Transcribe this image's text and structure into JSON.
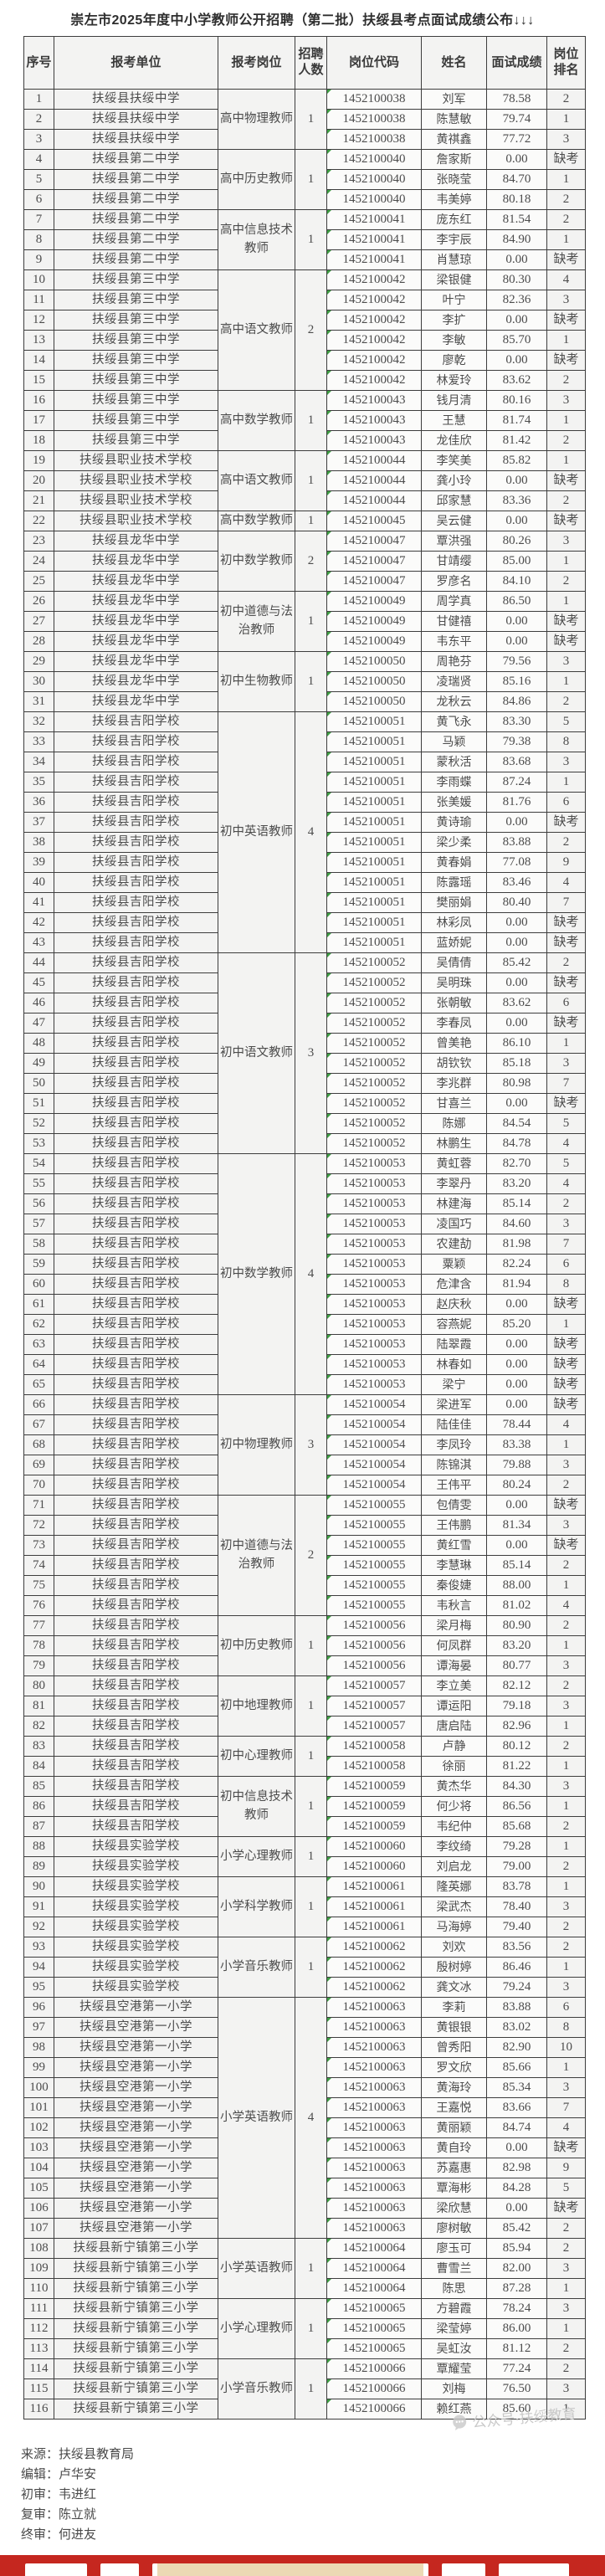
{
  "title": "崇左市2025年度中小学教师公开招聘（第二批）扶绥县考点面试成绩公布↓↓↓",
  "watermark": "公众号·扶绥教育",
  "table": {
    "headers": [
      "序号",
      "报考单位",
      "报考岗位",
      "招聘人数",
      "岗位代码",
      "姓名",
      "面试成绩",
      "岗位排名"
    ],
    "groups": [
      {
        "school": "扶绥县扶绥中学",
        "position": "高中物理教师",
        "count": "1",
        "code": "1452100038",
        "rows": [
          {
            "no": "1",
            "name": "刘军",
            "score": "78.58",
            "rank": "2"
          },
          {
            "no": "2",
            "name": "陈慧敏",
            "score": "79.74",
            "rank": "1"
          },
          {
            "no": "3",
            "name": "黄祺鑫",
            "score": "77.72",
            "rank": "3"
          }
        ]
      },
      {
        "school": "扶绥县第二中学",
        "position": "高中历史教师",
        "count": "1",
        "code": "1452100040",
        "rows": [
          {
            "no": "4",
            "name": "詹家斯",
            "score": "0.00",
            "rank": "缺考"
          },
          {
            "no": "5",
            "name": "张晓莹",
            "score": "84.70",
            "rank": "1"
          },
          {
            "no": "6",
            "name": "韦美婷",
            "score": "80.18",
            "rank": "2"
          }
        ]
      },
      {
        "school": "扶绥县第二中学",
        "position": "高中信息技术教师",
        "count": "1",
        "code": "1452100041",
        "rows": [
          {
            "no": "7",
            "name": "庞东红",
            "score": "81.54",
            "rank": "2"
          },
          {
            "no": "8",
            "name": "李宇辰",
            "score": "84.90",
            "rank": "1"
          },
          {
            "no": "9",
            "name": "肖慧琼",
            "score": "0.00",
            "rank": "缺考"
          }
        ]
      },
      {
        "school": "扶绥县第三中学",
        "position": "高中语文教师",
        "count": "2",
        "code": "1452100042",
        "rows": [
          {
            "no": "10",
            "name": "梁银健",
            "score": "80.30",
            "rank": "4"
          },
          {
            "no": "11",
            "name": "叶宁",
            "score": "82.36",
            "rank": "3"
          },
          {
            "no": "12",
            "name": "李扩",
            "score": "0.00",
            "rank": "缺考"
          },
          {
            "no": "13",
            "name": "李敏",
            "score": "85.70",
            "rank": "1"
          },
          {
            "no": "14",
            "name": "廖乾",
            "score": "0.00",
            "rank": "缺考"
          },
          {
            "no": "15",
            "name": "林爱玲",
            "score": "83.62",
            "rank": "2"
          }
        ]
      },
      {
        "school": "扶绥县第三中学",
        "position": "高中数学教师",
        "count": "1",
        "code": "1452100043",
        "rows": [
          {
            "no": "16",
            "name": "钱月清",
            "score": "80.16",
            "rank": "3"
          },
          {
            "no": "17",
            "name": "王慧",
            "score": "81.74",
            "rank": "1"
          },
          {
            "no": "18",
            "name": "龙佳欣",
            "score": "81.42",
            "rank": "2"
          }
        ]
      },
      {
        "school": "扶绥县职业技术学校",
        "position": "高中语文教师",
        "count": "1",
        "code": "1452100044",
        "rows": [
          {
            "no": "19",
            "name": "李笑美",
            "score": "85.82",
            "rank": "1"
          },
          {
            "no": "20",
            "name": "龚小玲",
            "score": "0.00",
            "rank": "缺考"
          },
          {
            "no": "21",
            "name": "邱家慧",
            "score": "83.36",
            "rank": "2"
          }
        ]
      },
      {
        "school": "扶绥县职业技术学校",
        "position": "高中数学教师",
        "count": "1",
        "code": "1452100045",
        "rows": [
          {
            "no": "22",
            "name": "吴云健",
            "score": "0.00",
            "rank": "缺考"
          }
        ]
      },
      {
        "school": "扶绥县龙华中学",
        "position": "初中数学教师",
        "count": "2",
        "code": "1452100047",
        "rows": [
          {
            "no": "23",
            "name": "覃洪强",
            "score": "80.26",
            "rank": "3"
          },
          {
            "no": "24",
            "name": "甘靖缨",
            "score": "85.00",
            "rank": "1"
          },
          {
            "no": "25",
            "name": "罗彦名",
            "score": "84.10",
            "rank": "2"
          }
        ]
      },
      {
        "school": "扶绥县龙华中学",
        "position": "初中道德与法治教师",
        "count": "1",
        "code": "1452100049",
        "rows": [
          {
            "no": "26",
            "name": "周学真",
            "score": "86.50",
            "rank": "1"
          },
          {
            "no": "27",
            "name": "甘健禧",
            "score": "0.00",
            "rank": "缺考"
          },
          {
            "no": "28",
            "name": "韦东平",
            "score": "0.00",
            "rank": "缺考"
          }
        ]
      },
      {
        "school": "扶绥县龙华中学",
        "position": "初中生物教师",
        "count": "1",
        "code": "1452100050",
        "rows": [
          {
            "no": "29",
            "name": "周艳芬",
            "score": "79.56",
            "rank": "3"
          },
          {
            "no": "30",
            "name": "凌瑞贤",
            "score": "85.16",
            "rank": "1"
          },
          {
            "no": "31",
            "name": "龙秋云",
            "score": "84.86",
            "rank": "2"
          }
        ]
      },
      {
        "school": "扶绥县吉阳学校",
        "position": "初中英语教师",
        "count": "4",
        "code": "1452100051",
        "rows": [
          {
            "no": "32",
            "name": "黄飞永",
            "score": "83.30",
            "rank": "5"
          },
          {
            "no": "33",
            "name": "马颖",
            "score": "79.38",
            "rank": "8"
          },
          {
            "no": "34",
            "name": "蒙秋活",
            "score": "83.68",
            "rank": "3"
          },
          {
            "no": "35",
            "name": "李雨蝶",
            "score": "87.24",
            "rank": "1"
          },
          {
            "no": "36",
            "name": "张美媛",
            "score": "81.76",
            "rank": "6"
          },
          {
            "no": "37",
            "name": "黄诗瑜",
            "score": "0.00",
            "rank": "缺考"
          },
          {
            "no": "38",
            "name": "梁少柔",
            "score": "83.88",
            "rank": "2"
          },
          {
            "no": "39",
            "name": "黄春娟",
            "score": "77.08",
            "rank": "9"
          },
          {
            "no": "40",
            "name": "陈露瑶",
            "score": "83.46",
            "rank": "4"
          },
          {
            "no": "41",
            "name": "樊丽娟",
            "score": "80.40",
            "rank": "7"
          },
          {
            "no": "42",
            "name": "林彩凤",
            "score": "0.00",
            "rank": "缺考"
          },
          {
            "no": "43",
            "name": "蓝娇妮",
            "score": "0.00",
            "rank": "缺考"
          }
        ]
      },
      {
        "school": "扶绥县吉阳学校",
        "position": "初中语文教师",
        "count": "3",
        "code": "1452100052",
        "rows": [
          {
            "no": "44",
            "name": "吴倩倩",
            "score": "85.42",
            "rank": "2"
          },
          {
            "no": "45",
            "name": "吴明珠",
            "score": "0.00",
            "rank": "缺考"
          },
          {
            "no": "46",
            "name": "张朝敏",
            "score": "83.62",
            "rank": "6"
          },
          {
            "no": "47",
            "name": "李春凤",
            "score": "0.00",
            "rank": "缺考"
          },
          {
            "no": "48",
            "name": "曾美艳",
            "score": "86.10",
            "rank": "1"
          },
          {
            "no": "49",
            "name": "胡钦钦",
            "score": "85.18",
            "rank": "3"
          },
          {
            "no": "50",
            "name": "李兆群",
            "score": "80.98",
            "rank": "7"
          },
          {
            "no": "51",
            "name": "甘喜兰",
            "score": "0.00",
            "rank": "缺考"
          },
          {
            "no": "52",
            "name": "陈娜",
            "score": "84.54",
            "rank": "5"
          },
          {
            "no": "53",
            "name": "林鹏生",
            "score": "84.78",
            "rank": "4"
          }
        ]
      },
      {
        "school": "扶绥县吉阳学校",
        "position": "初中数学教师",
        "count": "4",
        "code": "1452100053",
        "rows": [
          {
            "no": "54",
            "name": "黄虹蓉",
            "score": "82.70",
            "rank": "5"
          },
          {
            "no": "55",
            "name": "李翠丹",
            "score": "83.20",
            "rank": "4"
          },
          {
            "no": "56",
            "name": "林建海",
            "score": "85.14",
            "rank": "2"
          },
          {
            "no": "57",
            "name": "凌国巧",
            "score": "84.60",
            "rank": "3"
          },
          {
            "no": "58",
            "name": "农建劼",
            "score": "81.98",
            "rank": "7"
          },
          {
            "no": "59",
            "name": "粟颖",
            "score": "82.24",
            "rank": "6"
          },
          {
            "no": "60",
            "name": "危津含",
            "score": "81.94",
            "rank": "8"
          },
          {
            "no": "61",
            "name": "赵庆秋",
            "score": "0.00",
            "rank": "缺考"
          },
          {
            "no": "62",
            "name": "容燕妮",
            "score": "85.20",
            "rank": "1"
          },
          {
            "no": "63",
            "name": "陆翠霞",
            "score": "0.00",
            "rank": "缺考"
          },
          {
            "no": "64",
            "name": "林春如",
            "score": "0.00",
            "rank": "缺考"
          },
          {
            "no": "65",
            "name": "梁宁",
            "score": "0.00",
            "rank": "缺考"
          }
        ]
      },
      {
        "school": "扶绥县吉阳学校",
        "position": "初中物理教师",
        "count": "3",
        "code": "1452100054",
        "rows": [
          {
            "no": "66",
            "name": "梁进军",
            "score": "0.00",
            "rank": "缺考"
          },
          {
            "no": "67",
            "name": "陆佳佳",
            "score": "78.44",
            "rank": "4"
          },
          {
            "no": "68",
            "name": "李凤玲",
            "score": "83.38",
            "rank": "1"
          },
          {
            "no": "69",
            "name": "陈锦淇",
            "score": "79.88",
            "rank": "3"
          },
          {
            "no": "70",
            "name": "王伟平",
            "score": "80.24",
            "rank": "2"
          }
        ]
      },
      {
        "school": "扶绥县吉阳学校",
        "position": "初中道德与法治教师",
        "count": "2",
        "code": "1452100055",
        "rows": [
          {
            "no": "71",
            "name": "包倩雯",
            "score": "0.00",
            "rank": "缺考"
          },
          {
            "no": "72",
            "name": "王伟鹏",
            "score": "81.34",
            "rank": "3"
          },
          {
            "no": "73",
            "name": "黄红雪",
            "score": "0.00",
            "rank": "缺考"
          },
          {
            "no": "74",
            "name": "李慧琳",
            "score": "85.14",
            "rank": "2"
          },
          {
            "no": "75",
            "name": "秦俊婕",
            "score": "88.00",
            "rank": "1"
          },
          {
            "no": "76",
            "name": "韦秋言",
            "score": "81.02",
            "rank": "4"
          }
        ]
      },
      {
        "school": "扶绥县吉阳学校",
        "position": "初中历史教师",
        "count": "1",
        "code": "1452100056",
        "rows": [
          {
            "no": "77",
            "name": "梁月梅",
            "score": "80.90",
            "rank": "2"
          },
          {
            "no": "78",
            "name": "何凤群",
            "score": "83.20",
            "rank": "1"
          },
          {
            "no": "79",
            "name": "谭海晏",
            "score": "80.77",
            "rank": "3"
          }
        ]
      },
      {
        "school": "扶绥县吉阳学校",
        "position": "初中地理教师",
        "count": "1",
        "code": "1452100057",
        "rows": [
          {
            "no": "80",
            "name": "李立美",
            "score": "82.12",
            "rank": "2"
          },
          {
            "no": "81",
            "name": "谭运阳",
            "score": "79.18",
            "rank": "3"
          },
          {
            "no": "82",
            "name": "唐启陆",
            "score": "82.96",
            "rank": "1"
          }
        ]
      },
      {
        "school": "扶绥县吉阳学校",
        "position": "初中心理教师",
        "count": "1",
        "code": "1452100058",
        "rows": [
          {
            "no": "83",
            "name": "卢静",
            "score": "80.12",
            "rank": "2"
          },
          {
            "no": "84",
            "name": "徐丽",
            "score": "81.22",
            "rank": "1"
          }
        ]
      },
      {
        "school": "扶绥县吉阳学校",
        "position": "初中信息技术教师",
        "count": "1",
        "code": "1452100059",
        "rows": [
          {
            "no": "85",
            "name": "黄杰华",
            "score": "84.30",
            "rank": "3"
          },
          {
            "no": "86",
            "name": "何少将",
            "score": "86.56",
            "rank": "1"
          },
          {
            "no": "87",
            "name": "韦纪仲",
            "score": "85.68",
            "rank": "2"
          }
        ]
      },
      {
        "school": "扶绥县实验学校",
        "position": "小学心理教师",
        "count": "1",
        "code": "1452100060",
        "rows": [
          {
            "no": "88",
            "name": "李纹绮",
            "score": "79.28",
            "rank": "1"
          },
          {
            "no": "89",
            "name": "刘启龙",
            "score": "79.00",
            "rank": "2"
          }
        ]
      },
      {
        "school": "扶绥县实验学校",
        "position": "小学科学教师",
        "count": "1",
        "code": "1452100061",
        "rows": [
          {
            "no": "90",
            "name": "隆英娜",
            "score": "83.78",
            "rank": "1"
          },
          {
            "no": "91",
            "name": "梁武杰",
            "score": "78.40",
            "rank": "3"
          },
          {
            "no": "92",
            "name": "马海婷",
            "score": "79.40",
            "rank": "2"
          }
        ]
      },
      {
        "school": "扶绥县实验学校",
        "position": "小学音乐教师",
        "count": "1",
        "code": "1452100062",
        "rows": [
          {
            "no": "93",
            "name": "刘欢",
            "score": "83.56",
            "rank": "2"
          },
          {
            "no": "94",
            "name": "殷树婷",
            "score": "86.46",
            "rank": "1"
          },
          {
            "no": "95",
            "name": "龚文冰",
            "score": "79.24",
            "rank": "3"
          }
        ]
      },
      {
        "school": "扶绥县空港第一小学",
        "position": "小学英语教师",
        "count": "4",
        "code": "1452100063",
        "rows": [
          {
            "no": "96",
            "name": "李莉",
            "score": "83.88",
            "rank": "6"
          },
          {
            "no": "97",
            "name": "黄银银",
            "score": "83.02",
            "rank": "8"
          },
          {
            "no": "98",
            "name": "曾秀阳",
            "score": "82.90",
            "rank": "10"
          },
          {
            "no": "99",
            "name": "罗文欣",
            "score": "85.66",
            "rank": "1"
          },
          {
            "no": "100",
            "name": "黄海玲",
            "score": "85.34",
            "rank": "3"
          },
          {
            "no": "101",
            "name": "王嘉悦",
            "score": "83.66",
            "rank": "7"
          },
          {
            "no": "102",
            "name": "黄丽颖",
            "score": "84.74",
            "rank": "4"
          },
          {
            "no": "103",
            "name": "黄自玲",
            "score": "0.00",
            "rank": "缺考"
          },
          {
            "no": "104",
            "name": "苏嘉惠",
            "score": "82.98",
            "rank": "9"
          },
          {
            "no": "105",
            "name": "覃海彬",
            "score": "84.28",
            "rank": "5"
          },
          {
            "no": "106",
            "name": "梁欣慧",
            "score": "0.00",
            "rank": "缺考"
          },
          {
            "no": "107",
            "name": "廖树敏",
            "score": "85.42",
            "rank": "2"
          }
        ]
      },
      {
        "school": "扶绥县新宁镇第三小学",
        "position": "小学英语教师",
        "count": "1",
        "code": "1452100064",
        "rows": [
          {
            "no": "108",
            "name": "廖玉可",
            "score": "85.94",
            "rank": "2"
          },
          {
            "no": "109",
            "name": "曹雪兰",
            "score": "82.00",
            "rank": "3"
          },
          {
            "no": "110",
            "name": "陈思",
            "score": "87.28",
            "rank": "1"
          }
        ]
      },
      {
        "school": "扶绥县新宁镇第三小学",
        "position": "小学心理教师",
        "count": "1",
        "code": "1452100065",
        "rows": [
          {
            "no": "111",
            "name": "方碧霞",
            "score": "78.24",
            "rank": "3"
          },
          {
            "no": "112",
            "name": "梁莹婷",
            "score": "86.00",
            "rank": "1"
          },
          {
            "no": "113",
            "name": "吴虹汝",
            "score": "81.12",
            "rank": "2"
          }
        ]
      },
      {
        "school": "扶绥县新宁镇第三小学",
        "position": "小学音乐教师",
        "count": "1",
        "code": "1452100066",
        "rows": [
          {
            "no": "114",
            "name": "覃耀莹",
            "score": "77.24",
            "rank": "2"
          },
          {
            "no": "115",
            "name": "刘梅",
            "score": "76.50",
            "rank": "3"
          },
          {
            "no": "116",
            "name": "赖红燕",
            "score": "85.60",
            "rank": "1"
          }
        ]
      }
    ]
  },
  "footer": {
    "lines": [
      "来源：扶绥县教育局",
      "编辑：卢华安",
      "初审：韦进红",
      "复审：陈立就",
      "终审：何进友"
    ]
  }
}
